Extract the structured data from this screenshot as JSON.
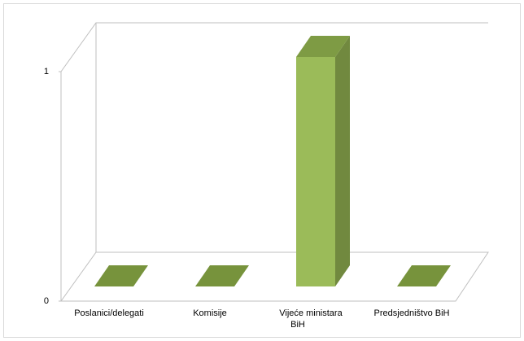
{
  "chart_data": {
    "type": "bar3d",
    "categories": [
      "Poslanici/delegati",
      "Komisije",
      "Vijeće ministara BiH",
      "Predsjedništvo BiH"
    ],
    "values": [
      0,
      0,
      1,
      0
    ],
    "color": "#9bbb59",
    "ylim": [
      0,
      1
    ],
    "yticks": [
      0,
      1
    ]
  }
}
